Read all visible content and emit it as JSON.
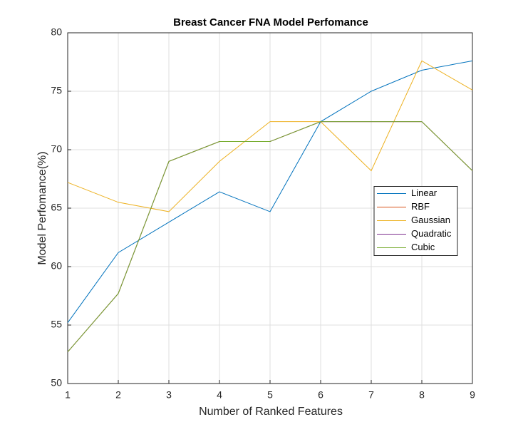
{
  "chart_data": {
    "type": "line",
    "title": "Breast Cancer FNA Model Perfomance",
    "xlabel": "Number of Ranked Features",
    "ylabel": "Model Perfomance(%)",
    "x": [
      1,
      2,
      3,
      4,
      5,
      6,
      7,
      8,
      9
    ],
    "series": [
      {
        "name": "Linear",
        "color": "#0072bd",
        "values": [
          55.2,
          61.2,
          63.8,
          66.4,
          64.7,
          72.4,
          75,
          76.8,
          77.6
        ]
      },
      {
        "name": "RBF",
        "color": "#d95319",
        "values": [
          52.7,
          57.7,
          69.0,
          70.7,
          70.7,
          72.4,
          72.4,
          72.4,
          68.2
        ]
      },
      {
        "name": "Gaussian",
        "color": "#edb120",
        "values": [
          67.2,
          65.5,
          64.7,
          69.0,
          72.4,
          72.4,
          68.2,
          77.6,
          75.1
        ]
      },
      {
        "name": "Quadratic",
        "color": "#7e2f8e",
        "values": [
          52.7,
          57.7,
          69.0,
          70.7,
          70.7,
          72.4,
          72.4,
          72.4,
          68.2
        ]
      },
      {
        "name": "Cubic",
        "color": "#77ac30",
        "values": [
          52.7,
          57.7,
          69.0,
          70.7,
          70.7,
          72.4,
          72.4,
          72.4,
          68.2
        ]
      }
    ],
    "xlim": [
      1,
      9
    ],
    "xticks": [
      1,
      2,
      3,
      4,
      5,
      6,
      7,
      8,
      9
    ],
    "ylim": [
      50,
      80
    ],
    "yticks": [
      50,
      55,
      60,
      65,
      70,
      75,
      80
    ],
    "grid": true,
    "legend": "east"
  }
}
